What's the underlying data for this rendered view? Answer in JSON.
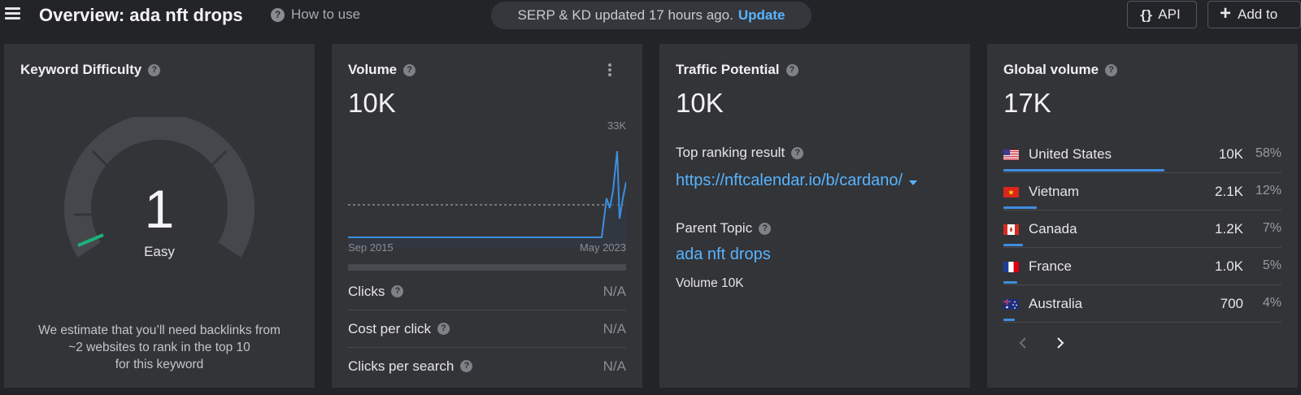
{
  "header": {
    "title": "Overview: ada nft drops",
    "how_to_use": "How to use",
    "serp_status": "SERP & KD updated 17 hours ago.",
    "update_link": "Update",
    "api_label": "API",
    "add_to_label": "Add to"
  },
  "keyword_difficulty": {
    "title": "Keyword Difficulty",
    "value": "1",
    "rating": "Easy",
    "score": 1,
    "note_line1": "We estimate that you’ll need backlinks from",
    "note_line2": "~2 websites to rank in the top 10",
    "note_line3": "for this keyword",
    "accent_color": "#1db07a"
  },
  "volume": {
    "title": "Volume",
    "value": "10K",
    "chart_max_label": "33K",
    "start_label": "Sep 2015",
    "end_label": "May 2023",
    "metrics": [
      {
        "label": "Clicks",
        "value": "N/A"
      },
      {
        "label": "Cost per click",
        "value": "N/A"
      },
      {
        "label": "Clicks per search",
        "value": "N/A"
      }
    ]
  },
  "traffic_potential": {
    "title": "Traffic Potential",
    "value": "10K",
    "top_ranking_label": "Top ranking result",
    "top_ranking_url": "https://nftcalendar.io/b/cardano/",
    "parent_topic_label": "Parent Topic",
    "parent_topic": "ada nft drops",
    "parent_volume": "Volume 10K"
  },
  "global_volume": {
    "title": "Global volume",
    "value": "17K",
    "countries": [
      {
        "name": "United States",
        "volume": "10K",
        "percent": "58%",
        "share": 0.58,
        "flag": "us"
      },
      {
        "name": "Vietnam",
        "volume": "2.1K",
        "percent": "12%",
        "share": 0.12,
        "flag": "vn"
      },
      {
        "name": "Canada",
        "volume": "1.2K",
        "percent": "7%",
        "share": 0.07,
        "flag": "ca"
      },
      {
        "name": "France",
        "volume": "1.0K",
        "percent": "5%",
        "share": 0.05,
        "flag": "fr"
      },
      {
        "name": "Australia",
        "volume": "700",
        "percent": "4%",
        "share": 0.04,
        "flag": "au"
      }
    ]
  },
  "colors": {
    "background": "#232428",
    "card": "#333438",
    "link": "#57b4ff",
    "bar": "#3e8ee0"
  }
}
